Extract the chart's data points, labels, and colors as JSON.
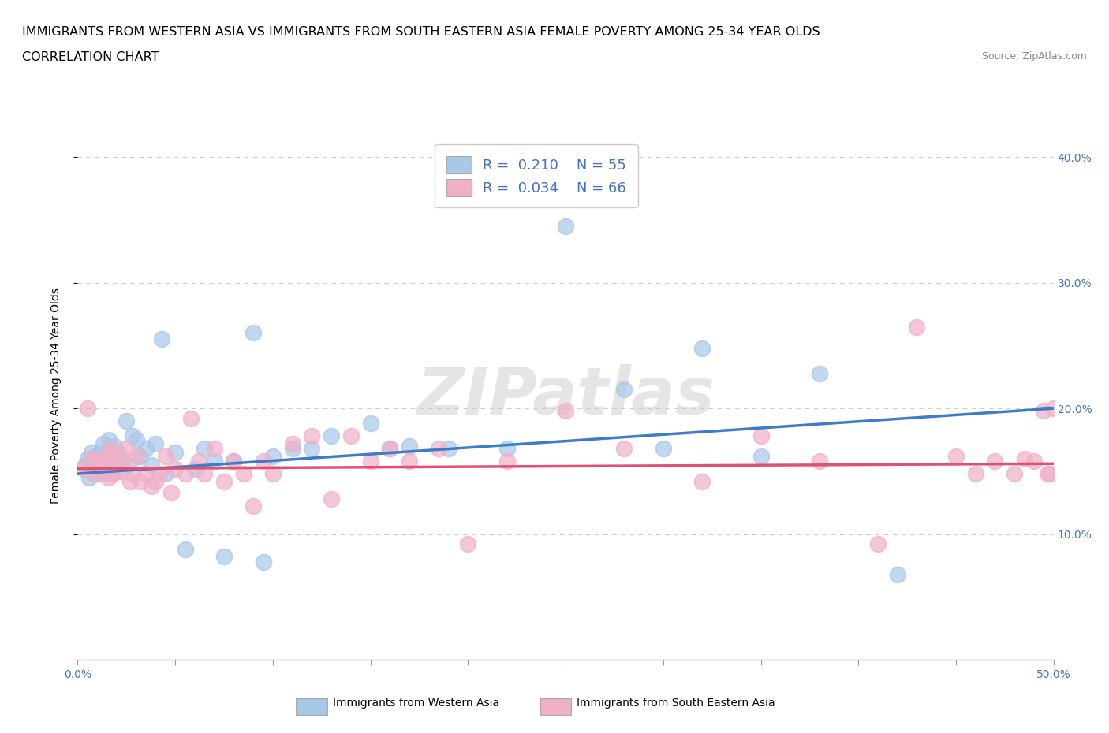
{
  "title_line1": "IMMIGRANTS FROM WESTERN ASIA VS IMMIGRANTS FROM SOUTH EASTERN ASIA FEMALE POVERTY AMONG 25-34 YEAR OLDS",
  "title_line2": "CORRELATION CHART",
  "source_text": "Source: ZipAtlas.com",
  "ylabel": "Female Poverty Among 25-34 Year Olds",
  "xlim": [
    0.0,
    0.5
  ],
  "ylim": [
    0.0,
    0.42
  ],
  "x_ticks": [
    0.0,
    0.05,
    0.1,
    0.15,
    0.2,
    0.25,
    0.3,
    0.35,
    0.4,
    0.45,
    0.5
  ],
  "y_ticks": [
    0.0,
    0.1,
    0.2,
    0.3,
    0.4
  ],
  "y_tick_labels_right": [
    "",
    "10.0%",
    "20.0%",
    "30.0%",
    "40.0%"
  ],
  "grid_color": "#cccccc",
  "background_color": "#ffffff",
  "series1_color": "#a8c8e8",
  "series2_color": "#f0b0c8",
  "series1_label": "Immigrants from Western Asia",
  "series2_label": "Immigrants from South Eastern Asia",
  "series1_R": "0.210",
  "series1_N": "55",
  "series2_R": "0.034",
  "series2_N": "66",
  "series1_x": [
    0.004,
    0.005,
    0.006,
    0.007,
    0.008,
    0.009,
    0.01,
    0.011,
    0.012,
    0.013,
    0.014,
    0.015,
    0.016,
    0.017,
    0.018,
    0.019,
    0.02,
    0.021,
    0.022,
    0.023,
    0.025,
    0.026,
    0.028,
    0.03,
    0.032,
    0.035,
    0.038,
    0.04,
    0.043,
    0.045,
    0.05,
    0.055,
    0.06,
    0.065,
    0.07,
    0.075,
    0.08,
    0.09,
    0.095,
    0.1,
    0.11,
    0.12,
    0.13,
    0.15,
    0.16,
    0.17,
    0.19,
    0.22,
    0.25,
    0.28,
    0.3,
    0.32,
    0.35,
    0.38,
    0.42
  ],
  "series1_y": [
    0.155,
    0.16,
    0.145,
    0.165,
    0.155,
    0.162,
    0.148,
    0.155,
    0.165,
    0.172,
    0.15,
    0.162,
    0.175,
    0.158,
    0.148,
    0.17,
    0.158,
    0.165,
    0.15,
    0.16,
    0.19,
    0.155,
    0.178,
    0.175,
    0.162,
    0.168,
    0.155,
    0.172,
    0.255,
    0.148,
    0.165,
    0.088,
    0.152,
    0.168,
    0.158,
    0.082,
    0.158,
    0.26,
    0.078,
    0.162,
    0.168,
    0.168,
    0.178,
    0.188,
    0.168,
    0.17,
    0.168,
    0.168,
    0.345,
    0.215,
    0.168,
    0.248,
    0.162,
    0.228,
    0.068
  ],
  "series2_x": [
    0.003,
    0.005,
    0.007,
    0.008,
    0.01,
    0.011,
    0.012,
    0.013,
    0.015,
    0.016,
    0.017,
    0.018,
    0.019,
    0.02,
    0.022,
    0.023,
    0.025,
    0.027,
    0.028,
    0.03,
    0.032,
    0.035,
    0.038,
    0.04,
    0.042,
    0.045,
    0.048,
    0.05,
    0.055,
    0.058,
    0.062,
    0.065,
    0.07,
    0.075,
    0.08,
    0.085,
    0.09,
    0.095,
    0.1,
    0.11,
    0.12,
    0.13,
    0.14,
    0.15,
    0.16,
    0.17,
    0.185,
    0.2,
    0.22,
    0.25,
    0.28,
    0.32,
    0.35,
    0.38,
    0.41,
    0.43,
    0.45,
    0.46,
    0.47,
    0.48,
    0.485,
    0.49,
    0.495,
    0.497,
    0.498,
    0.5
  ],
  "series2_y": [
    0.152,
    0.2,
    0.16,
    0.148,
    0.158,
    0.152,
    0.16,
    0.148,
    0.162,
    0.145,
    0.168,
    0.148,
    0.158,
    0.162,
    0.15,
    0.158,
    0.168,
    0.142,
    0.148,
    0.162,
    0.142,
    0.148,
    0.138,
    0.142,
    0.148,
    0.162,
    0.133,
    0.152,
    0.148,
    0.192,
    0.158,
    0.148,
    0.168,
    0.142,
    0.158,
    0.148,
    0.122,
    0.158,
    0.148,
    0.172,
    0.178,
    0.128,
    0.178,
    0.158,
    0.168,
    0.158,
    0.168,
    0.092,
    0.158,
    0.198,
    0.168,
    0.142,
    0.178,
    0.158,
    0.092,
    0.265,
    0.162,
    0.148,
    0.158,
    0.148,
    0.16,
    0.158,
    0.198,
    0.148,
    0.148,
    0.2
  ],
  "line1_x_start": 0.0,
  "line1_x_end": 0.5,
  "line1_y_start": 0.148,
  "line1_y_end": 0.2,
  "line1_color": "#3d7cc9",
  "line1_linewidth": 2.5,
  "line2_x_start": 0.0,
  "line2_x_end": 0.5,
  "line2_y_start": 0.152,
  "line2_y_end": 0.156,
  "line2_color": "#e05070",
  "line2_linewidth": 2.5,
  "legend_R_color": "#4472c4",
  "title_fontsize": 11.5,
  "subtitle_fontsize": 11.5,
  "axis_label_fontsize": 10,
  "tick_fontsize": 10,
  "legend_fontsize": 13,
  "dot_size": 200
}
